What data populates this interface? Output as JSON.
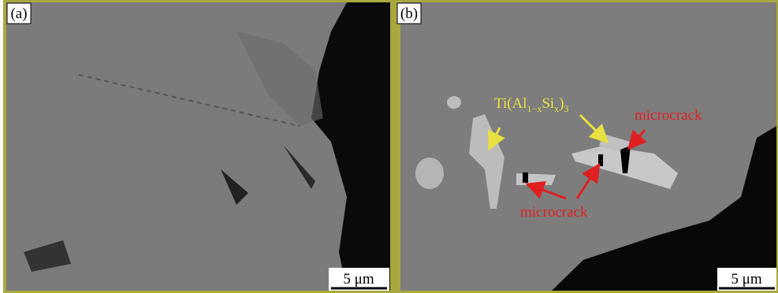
{
  "panels": [
    {
      "label": "(a)",
      "scale_bar": "5 μm"
    },
    {
      "label": "(b)",
      "scale_bar": "5 μm",
      "formula": [
        "Ti(Al",
        "1−x",
        "Si",
        "x",
        ")",
        "3"
      ],
      "annotations": [
        "microcrack",
        "microcrack"
      ]
    }
  ]
}
